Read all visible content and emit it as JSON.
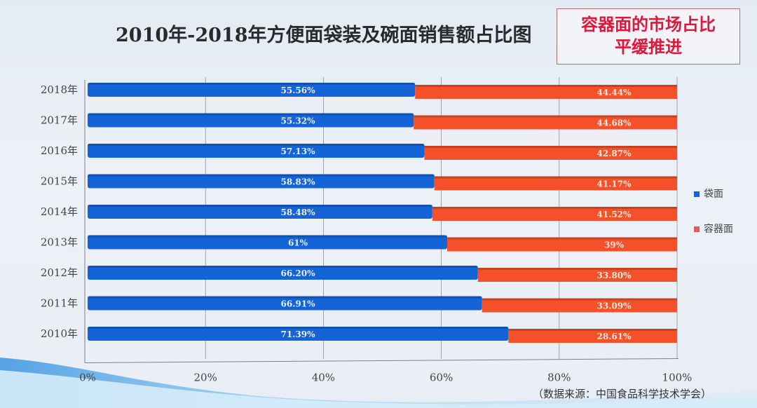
{
  "callout": {
    "line1": "容器面的市场占比",
    "line2": "平缓推进"
  },
  "source": "（数据来源：中国食品科学技术学会）",
  "chart_data": {
    "type": "bar",
    "stacked": true,
    "orientation": "horizontal",
    "title": "2010年-2018年方便面袋装及碗面销售额占比图",
    "categories": [
      "2018年",
      "2017年",
      "2016年",
      "2015年",
      "2014年",
      "2013年",
      "2012年",
      "2011年",
      "2010年"
    ],
    "series": [
      {
        "name": "袋面",
        "color": "#1464d8",
        "values": [
          55.56,
          55.32,
          57.13,
          58.83,
          58.48,
          61,
          66.2,
          66.91,
          71.39
        ],
        "labels": [
          "55.56%",
          "55.32%",
          "57.13%",
          "58.83%",
          "58.48%",
          "61%",
          "66.20%",
          "66.91%",
          "71.39%"
        ]
      },
      {
        "name": "容器面",
        "color": "#f4512a",
        "values": [
          44.44,
          44.68,
          42.87,
          41.17,
          41.52,
          39,
          33.8,
          33.09,
          28.61
        ],
        "labels": [
          "44.44%",
          "44.68%",
          "42.87%",
          "41.17%",
          "41.52%",
          "39%",
          "33.80%",
          "33.09%",
          "28.61%"
        ]
      }
    ],
    "xlim": [
      0,
      100
    ],
    "xticks": [
      "0%",
      "20%",
      "40%",
      "60%",
      "80%",
      "100%"
    ],
    "grid": true,
    "legend": "right"
  }
}
